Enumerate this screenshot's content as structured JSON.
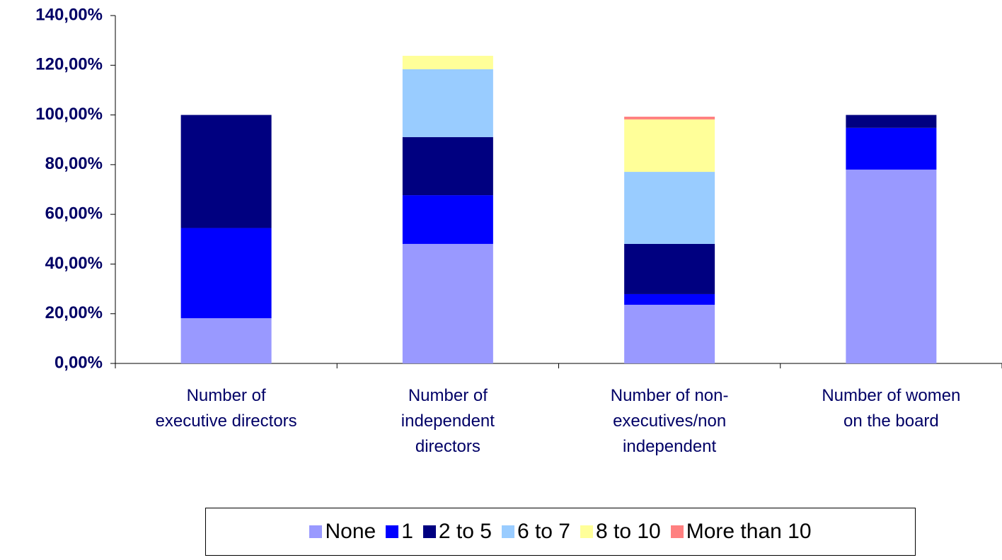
{
  "chart_data": {
    "type": "stacked_bar",
    "categories": [
      "Number of\nexecutive directors",
      "Number of\nindependent\ndirectors",
      "Number of non-\nexecutives/non\nindependent",
      "Number of women\non the board"
    ],
    "series": [
      {
        "name": "None",
        "color": "#9999ff",
        "values": [
          18.2,
          48.1,
          23.6,
          78.0
        ]
      },
      {
        "name": "1",
        "color": "#0000ff",
        "values": [
          36.3,
          19.6,
          4.3,
          16.8
        ]
      },
      {
        "name": "2 to 5",
        "color": "#000080",
        "values": [
          45.5,
          23.4,
          20.2,
          5.2
        ]
      },
      {
        "name": "6 to 7",
        "color": "#99ccff",
        "values": [
          0,
          27.3,
          29.0,
          0
        ]
      },
      {
        "name": "8 to 10",
        "color": "#ffff99",
        "values": [
          0,
          5.4,
          21.1,
          0
        ]
      },
      {
        "name": "More than 10",
        "color": "#ff8080",
        "values": [
          0,
          0,
          1.1,
          0
        ]
      }
    ],
    "ylim": [
      0,
      140
    ],
    "yticks": [
      {
        "value": 0,
        "label": "0,00%"
      },
      {
        "value": 20,
        "label": "20,00%"
      },
      {
        "value": 40,
        "label": "40,00%"
      },
      {
        "value": 60,
        "label": "60,00%"
      },
      {
        "value": 80,
        "label": "80,00%"
      },
      {
        "value": 100,
        "label": "100,00%"
      },
      {
        "value": 120,
        "label": "120,00%"
      },
      {
        "value": 140,
        "label": "140,00%"
      }
    ],
    "legend": "bottom"
  }
}
